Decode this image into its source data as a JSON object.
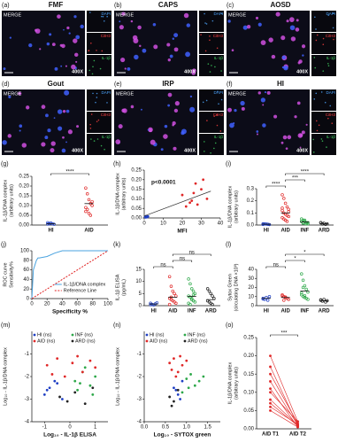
{
  "images": [
    {
      "panel": "(a)",
      "title": "FMF",
      "merge": "MERGE",
      "magnification": "400X",
      "channels": [
        "DAPI",
        "CitH3",
        "IL-1β"
      ]
    },
    {
      "panel": "(b)",
      "title": "CAPS",
      "merge": "MERGE",
      "magnification": "400X",
      "channels": [
        "DAPI",
        "CitH3",
        "IL-1β"
      ]
    },
    {
      "panel": "(c)",
      "title": "AOSD",
      "merge": "MERGE",
      "magnification": "400X",
      "channels": [
        "DAPI",
        "CitH3",
        "IL-1β"
      ]
    },
    {
      "panel": "(d)",
      "title": "Gout",
      "merge": "MERGE",
      "magnification": "400X",
      "channels": [
        "DAPI",
        "CitH3",
        "IL-1β"
      ]
    },
    {
      "panel": "(e)",
      "title": "IRP",
      "merge": "MERGE",
      "magnification": "400X",
      "channels": [
        "DAPI",
        "CitH3",
        "IL-1β"
      ]
    },
    {
      "panel": "(f)",
      "title": "HI",
      "merge": "MERGE",
      "magnification": "400X",
      "channels": [
        "DAPI",
        "CitH3",
        "IL-1β"
      ]
    }
  ],
  "chart_data": [
    {
      "type": "dotplot",
      "panel": "(g)",
      "ylabel": [
        "IL-1β/DNA complex",
        "(arbitrary units)"
      ],
      "ylim": [
        0,
        0.25
      ],
      "yticks": [
        {
          "value": 0,
          "label": "0.00"
        },
        0.05,
        {
          "value": 0.1,
          "label": "0.10"
        },
        0.15,
        {
          "value": 0.2,
          "label": "0.20"
        },
        0.25
      ],
      "groups": [
        {
          "label": "HI",
          "color": "#1f3fc4",
          "values": [
            0.005,
            0.008,
            0.01,
            0.006,
            0.004,
            0.012,
            0.007
          ],
          "mean": 0.007
        },
        {
          "label": "AID",
          "color": "#e02828",
          "values": [
            0.19,
            0.16,
            0.13,
            0.11,
            0.1,
            0.09,
            0.08,
            0.06,
            0.05,
            0.12,
            0.07
          ],
          "mean": 0.11
        }
      ],
      "brackets": [
        {
          "groups": [
            "HI",
            "AID"
          ],
          "label": "****"
        }
      ]
    },
    {
      "type": "scatter",
      "panel": "(h)",
      "ylabel": [
        "IL-1β/DNA complex",
        "(arbitrary units)"
      ],
      "xlabel": "MFI",
      "annotation": "p<0.0001",
      "xlim": [
        0,
        40
      ],
      "xticks": [
        0,
        10,
        20,
        30,
        40
      ],
      "ylim": [
        0,
        0.25
      ],
      "yticks": [
        {
          "value": 0,
          "label": "0.00"
        },
        0.05,
        {
          "value": 0.1,
          "label": "0.10"
        },
        0.15,
        {
          "value": 0.2,
          "label": "0.20"
        },
        0.25
      ],
      "series": [
        {
          "color": "#1f3fc4",
          "x": [
            0.5,
            1,
            1.5,
            2,
            1.2,
            0.8
          ],
          "y": [
            0.005,
            0.01,
            0.004,
            0.008,
            0.006,
            0.003
          ]
        },
        {
          "color": "#e02828",
          "x": [
            20,
            22,
            25,
            27,
            28,
            30,
            31,
            33,
            26,
            24
          ],
          "y": [
            0.12,
            0.06,
            0.09,
            0.18,
            0.07,
            0.15,
            0.2,
            0.1,
            0.13,
            0.08
          ]
        }
      ],
      "fit": {
        "x": [
          0,
          35
        ],
        "y": [
          0.01,
          0.14
        ]
      }
    },
    {
      "type": "dotplot",
      "panel": "(i)",
      "ylabel": [
        "IL-1β/DNA complex",
        "(arbitrary units)"
      ],
      "ylim": [
        0,
        0.3
      ],
      "yticks": [
        {
          "value": 0,
          "label": "0.0"
        },
        0.1,
        0.2,
        0.3
      ],
      "groups": [
        {
          "label": "HI",
          "color": "#1f3fc4",
          "values": [
            0.005,
            0.01,
            0.008,
            0.006,
            0.004,
            0.01
          ],
          "mean": 0.007
        },
        {
          "label": "AID",
          "color": "#e02828",
          "values": [
            0.25,
            0.22,
            0.18,
            0.15,
            0.13,
            0.12,
            0.1,
            0.09,
            0.08,
            0.07,
            0.06,
            0.05,
            0.04,
            0.03,
            0.11,
            0.14
          ],
          "mean": 0.1
        },
        {
          "label": "INF",
          "color": "#2ea84a",
          "values": [
            0.05,
            0.04,
            0.03,
            0.02,
            0.01,
            0.03,
            0.02,
            0.04,
            0.01,
            0.02,
            0.03,
            0.015
          ],
          "mean": 0.025
        },
        {
          "label": "ARD",
          "color": "#222222",
          "values": [
            0.02,
            0.01,
            0.015,
            0.005,
            0.01,
            0.02,
            0.008
          ],
          "mean": 0.012
        }
      ],
      "brackets": [
        {
          "groups": [
            "HI",
            "AID"
          ],
          "label": "****"
        },
        {
          "groups": [
            "AID",
            "INF"
          ],
          "label": "***"
        },
        {
          "groups": [
            "AID",
            "ARD"
          ],
          "label": "****"
        }
      ]
    },
    {
      "type": "line",
      "panel": "(j)",
      "ylabel": [
        "ROC curve",
        "Sensitivity%"
      ],
      "xlabel": "Specificity %",
      "xlim": [
        0,
        100
      ],
      "xticks": [
        0,
        20,
        40,
        60,
        80,
        100
      ],
      "ylim": [
        0,
        100
      ],
      "yticks": [
        0,
        20,
        40,
        60,
        80,
        100
      ],
      "series": [
        {
          "name": "IL-1β/DNA complex",
          "color": "#4aa3df",
          "x": [
            0,
            2,
            4,
            6,
            8,
            10,
            20,
            30,
            40,
            100
          ],
          "y": [
            0,
            60,
            70,
            80,
            85,
            85,
            88,
            95,
            100,
            100
          ]
        },
        {
          "name": "Reference Line",
          "color": "#e02020",
          "dashed": true,
          "x": [
            0,
            100
          ],
          "y": [
            0,
            100
          ]
        }
      ]
    },
    {
      "type": "dotplot",
      "panel": "(k)",
      "ylabel": [
        "IL-1β ELISA",
        "(pg/mL)"
      ],
      "ylim": [
        0,
        15
      ],
      "yticks": [
        0,
        5,
        10,
        15
      ],
      "groups": [
        {
          "label": "HI",
          "color": "#1f3fc4",
          "values": [
            1,
            0.5,
            0.3,
            0.8,
            1.2,
            0.4
          ],
          "mean": 0.7
        },
        {
          "label": "AID",
          "color": "#e02828",
          "values": [
            12,
            8,
            6,
            5,
            4,
            3,
            2.5,
            2,
            1.5,
            1,
            0.5,
            3.5
          ],
          "mean": 3.5
        },
        {
          "label": "INF",
          "color": "#2ea84a",
          "values": [
            11,
            9,
            7,
            6,
            5,
            4,
            3.5,
            3,
            2,
            1.5,
            1,
            0.5,
            2.5,
            4.5
          ],
          "mean": 3.8
        },
        {
          "label": "ARD",
          "color": "#222222",
          "values": [
            7,
            6,
            5,
            4,
            3,
            2,
            1.5,
            1,
            0.5
          ],
          "mean": 2.5
        }
      ],
      "brackets": [
        {
          "groups": [
            "HI",
            "AID"
          ],
          "label": "ns"
        },
        {
          "groups": [
            "AID",
            "INF"
          ],
          "label": "ns"
        },
        {
          "groups": [
            "AID",
            "ARD"
          ],
          "label": "ns"
        }
      ]
    },
    {
      "type": "dotplot",
      "panel": "(l)",
      "ylabel": [
        "Sytox Green",
        "(circulating DNA ×10³)"
      ],
      "ylim": [
        0,
        40
      ],
      "yticks": [
        0,
        10,
        20,
        30,
        40
      ],
      "groups": [
        {
          "label": "HI",
          "color": "#1f3fc4",
          "values": [
            8,
            7,
            9,
            6,
            10,
            7.5
          ],
          "mean": 8
        },
        {
          "label": "AID",
          "color": "#e02828",
          "values": [
            12,
            10,
            9,
            8,
            7,
            11,
            6,
            9.5
          ],
          "mean": 9
        },
        {
          "label": "INF",
          "color": "#2ea84a",
          "values": [
            35,
            28,
            22,
            18,
            15,
            12,
            10,
            9,
            8,
            7,
            14,
            20,
            11
          ],
          "mean": 16
        },
        {
          "label": "ARD",
          "color": "#222222",
          "values": [
            6,
            5,
            7,
            4,
            5.5,
            6.5
          ],
          "mean": 5.5
        }
      ],
      "brackets": [
        {
          "groups": [
            "HI",
            "AID"
          ],
          "label": "ns"
        },
        {
          "groups": [
            "AID",
            "INF"
          ],
          "label": "*"
        },
        {
          "groups": [
            "AID",
            "ARD"
          ],
          "label": "*"
        }
      ]
    },
    {
      "type": "scatter",
      "panel": "(m)",
      "ylabel": [
        "Log₁₀ - IL-1β/DNA complex"
      ],
      "xlabel": "Log₁₀ - IL-1β ELISA",
      "xlim": [
        -1.5,
        1.5
      ],
      "xticks": [
        -1,
        0,
        1
      ],
      "ylim": [
        -4,
        0
      ],
      "yticks": [
        -4,
        -3,
        -2,
        -1
      ],
      "series": [
        {
          "name": "HI (ns)",
          "color": "#1f3fc4",
          "x": [
            -1,
            -0.8,
            -0.5,
            -0.3,
            -0.9,
            -0.6
          ],
          "y": [
            -2.8,
            -2.5,
            -2.3,
            -3,
            -2.6,
            -2.2
          ]
        },
        {
          "name": "INF (ns)",
          "color": "#2ea84a",
          "x": [
            0.2,
            0.5,
            0.8,
            1,
            0.3,
            0.6,
            0.9,
            0.4
          ],
          "y": [
            -2.2,
            -1.8,
            -2.4,
            -2,
            -2.6,
            -1.6,
            -2.8,
            -2.3
          ]
        },
        {
          "name": "AID (ns)",
          "color": "#e02828",
          "x": [
            -0.9,
            -0.5,
            -0.2,
            0.1,
            0.5,
            0.8,
            1,
            -0.7,
            0.3
          ],
          "y": [
            -1.5,
            -1.2,
            -2,
            -1.4,
            -1.8,
            -1.3,
            -1.6,
            -1.9,
            -1.1
          ]
        },
        {
          "name": "ARD (ns)",
          "color": "#222222",
          "x": [
            -0.4,
            -0.1,
            0.2,
            0.6,
            0.9
          ],
          "y": [
            -2.9,
            -3.1,
            -2.7,
            -3.2,
            -2.5
          ]
        }
      ]
    },
    {
      "type": "scatter",
      "panel": "(n)",
      "ylabel": [
        "Log₁₀ - IL-1β/DNA complex"
      ],
      "xlabel": "Log₁₀ - SYTOX green",
      "xlim": [
        0,
        1.8
      ],
      "xticks": [
        {
          "value": 0,
          "label": "0.0"
        },
        0.5,
        {
          "value": 1,
          "label": "1.0"
        },
        1.5
      ],
      "ylim": [
        -4,
        0
      ],
      "yticks": [
        -4,
        -3,
        -2,
        -1
      ],
      "series": [
        {
          "name": "HI (ns)",
          "color": "#1f3fc4",
          "x": [
            0.7,
            0.8,
            0.9,
            0.85,
            0.75
          ],
          "y": [
            -2.5,
            -2.8,
            -2.2,
            -3,
            -2.6
          ]
        },
        {
          "name": "INF (ns)",
          "color": "#2ea84a",
          "x": [
            1,
            1.1,
            1.2,
            1.3,
            0.9,
            1.4,
            1.05
          ],
          "y": [
            -2.1,
            -1.9,
            -2.4,
            -2.2,
            -2.7,
            -2,
            -2.5
          ]
        },
        {
          "name": "AID (ns)",
          "color": "#e02828",
          "x": [
            0.6,
            0.7,
            0.8,
            0.9,
            1,
            0.75,
            0.85,
            0.65
          ],
          "y": [
            -1.4,
            -1.2,
            -1.8,
            -1.5,
            -1.3,
            -2,
            -1.1,
            -1.7
          ]
        },
        {
          "name": "ARD (ns)",
          "color": "#222222",
          "x": [
            0.6,
            0.7,
            0.8,
            0.65
          ],
          "y": [
            -2.9,
            -3.1,
            -2.6,
            -3.3
          ]
        }
      ]
    },
    {
      "type": "paired",
      "panel": "(o)",
      "ylabel": [
        "IL-1β/DNA complex",
        "(arbitrary units)"
      ],
      "categories": [
        "AID T1",
        "AID T2"
      ],
      "color": "#e02828",
      "ylim": [
        0,
        0.25
      ],
      "yticks": [
        {
          "value": 0,
          "label": "0.00"
        },
        0.05,
        {
          "value": 0.1,
          "label": "0.10"
        },
        0.15,
        {
          "value": 0.2,
          "label": "0.20"
        },
        0.25
      ],
      "pairs": [
        [
          0.2,
          0.02
        ],
        [
          0.17,
          0.01
        ],
        [
          0.15,
          0.015
        ],
        [
          0.13,
          0.01
        ],
        [
          0.11,
          0.005
        ],
        [
          0.1,
          0.02
        ],
        [
          0.08,
          0.01
        ],
        [
          0.07,
          0.008
        ],
        [
          0.06,
          0.012
        ],
        [
          0.05,
          0.005
        ]
      ],
      "brackets": [
        {
          "groups": [
            "AID T1",
            "AID T2"
          ],
          "label": "***"
        }
      ]
    }
  ]
}
